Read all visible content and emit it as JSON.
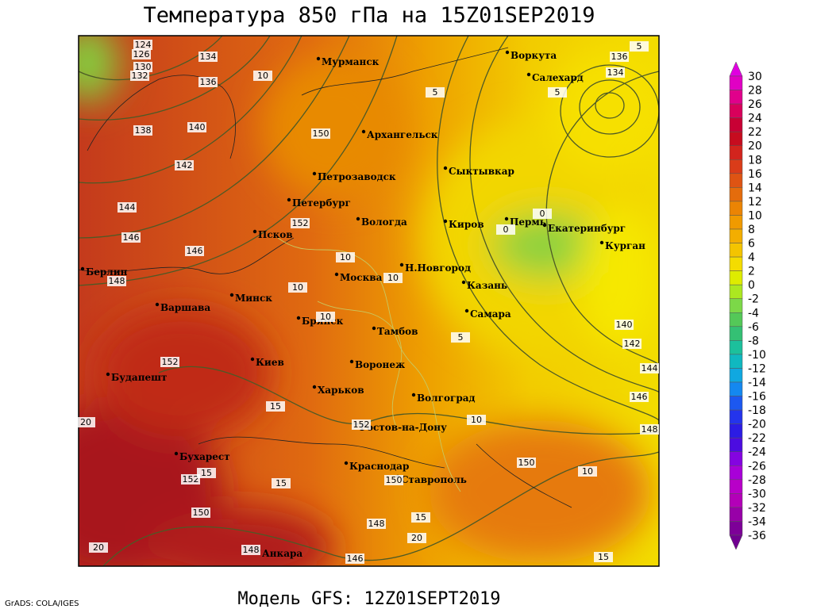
{
  "title": "Температура 850 гПа на 15Z01SEP2019",
  "subtitle": "Модель GFS: 12Z01SEPT2019",
  "credit": "GrADS: COLA/IGES",
  "cities": [
    "Мурманск",
    "Воркута",
    "Салехард",
    "Архангельск",
    "Сыктывкар",
    "Петрозаводск",
    "Петербург",
    "Вологда",
    "Киров",
    "Пермь",
    "Екатеринбург",
    "Курган",
    "Псков",
    "Берлин",
    "Москва",
    "Н.Новгород",
    "Казань",
    "Минск",
    "Варшава",
    "Самара",
    "Брянск",
    "Тамбов",
    "Киев",
    "Воронеж",
    "Будапешт",
    "Харьков",
    "Волгоград",
    "Ростов-на-Дону",
    "Бухарест",
    "Краснодар",
    "Ставрополь",
    "Анкара"
  ],
  "contour_labels": [
    124,
    126,
    130,
    132,
    134,
    136,
    138,
    140,
    142,
    144,
    146,
    148,
    152,
    150,
    152,
    152,
    150,
    148,
    148,
    146,
    150,
    150,
    146,
    148,
    144,
    142,
    140,
    134,
    136,
    10,
    5,
    5,
    5,
    10,
    10,
    10,
    10,
    5,
    15,
    15,
    10,
    10,
    20,
    20,
    15,
    20,
    15,
    15,
    0,
    0,
    152,
    146
  ],
  "colorbar": {
    "ticks": [
      30,
      28,
      26,
      24,
      22,
      20,
      18,
      16,
      14,
      12,
      10,
      8,
      6,
      4,
      2,
      0,
      -2,
      -4,
      -6,
      -8,
      -10,
      -12,
      -14,
      -16,
      -18,
      -20,
      -22,
      -24,
      -26,
      -28,
      -30,
      -32,
      -34,
      -36
    ]
  }
}
